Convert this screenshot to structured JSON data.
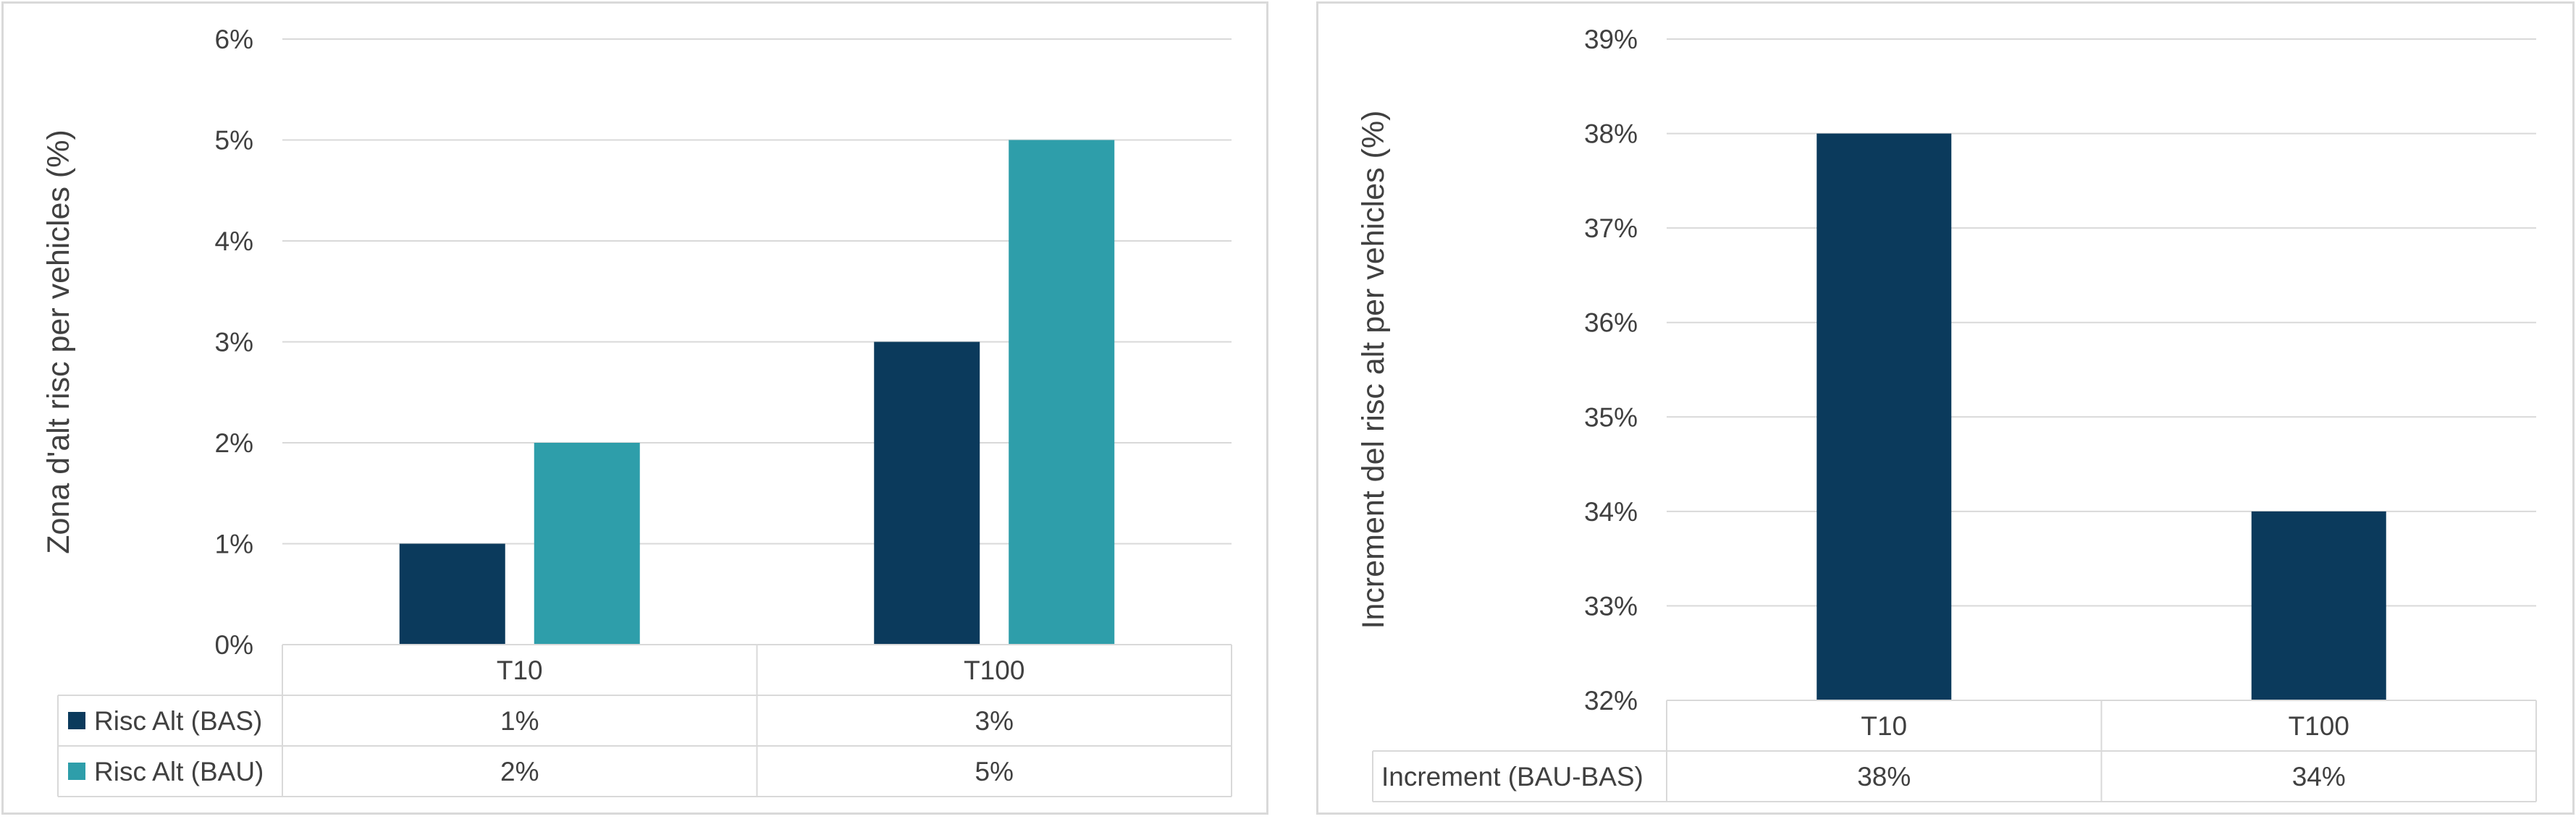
{
  "chart_data": [
    {
      "type": "bar",
      "ylabel": "Zona d'alt risc per vehicles (%)",
      "ylim": [
        0,
        6
      ],
      "yticks": [
        0,
        1,
        2,
        3,
        4,
        5,
        6
      ],
      "ytick_labels": [
        "0%",
        "1%",
        "2%",
        "3%",
        "4%",
        "5%",
        "6%"
      ],
      "grid": true,
      "legend": "data-table",
      "categories": [
        "T10",
        "T100"
      ],
      "series": [
        {
          "name": "Risc Alt (BAS)",
          "values": [
            1,
            3
          ],
          "labels": [
            "1%",
            "3%"
          ],
          "color": "#0b3a5c"
        },
        {
          "name": "Risc Alt (BAU)",
          "values": [
            2,
            5
          ],
          "labels": [
            "2%",
            "5%"
          ],
          "color": "#2e9eaa"
        }
      ]
    },
    {
      "type": "bar",
      "ylabel": "Increment del risc alt per vehicles (%)",
      "ylim": [
        32,
        39
      ],
      "yticks": [
        32,
        33,
        34,
        35,
        36,
        37,
        38,
        39
      ],
      "ytick_labels": [
        "32%",
        "33%",
        "34%",
        "35%",
        "36%",
        "37%",
        "38%",
        "39%"
      ],
      "grid": true,
      "legend": "data-table",
      "categories": [
        "T10",
        "T100"
      ],
      "series": [
        {
          "name": "Increment (BAU-BAS)",
          "values": [
            38,
            34
          ],
          "labels": [
            "38%",
            "34%"
          ],
          "color": "#0b3a5c"
        }
      ]
    }
  ]
}
